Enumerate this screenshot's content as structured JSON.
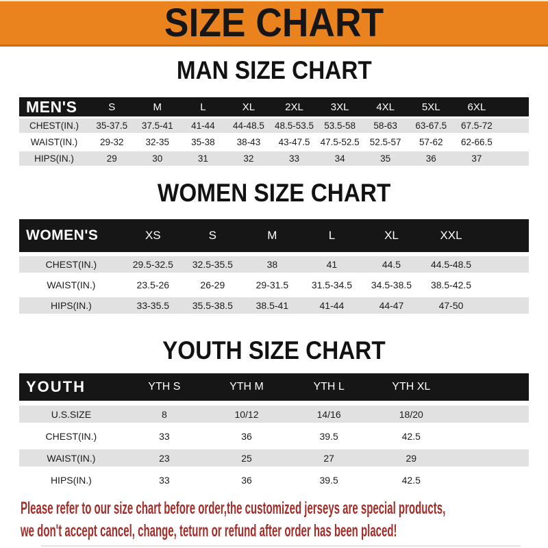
{
  "banner": {
    "title": "SIZE CHART"
  },
  "sections": [
    {
      "heading": "MAN SIZE CHART",
      "corner_label": "MEN'S",
      "columns": [
        "S",
        "M",
        "L",
        "XL",
        "2XL",
        "3XL",
        "4XL",
        "5XL",
        "6XL"
      ],
      "rows": [
        {
          "label": "CHEST(IN.)",
          "values": [
            "35-37.5",
            "37.5-41",
            "41-44",
            "44-48.5",
            "48.5-53.5",
            "53.5-58",
            "58-63",
            "63-67.5",
            "67.5-72"
          ]
        },
        {
          "label": "WAIST(IN.)",
          "values": [
            "29-32",
            "32-35",
            "35-38",
            "38-43",
            "43-47.5",
            "47.5-52.5",
            "52.5-57",
            "57-62",
            "62-66.5"
          ]
        },
        {
          "label": "HIPS(IN.)",
          "values": [
            "29",
            "30",
            "31",
            "32",
            "33",
            "34",
            "35",
            "36",
            "37"
          ]
        }
      ]
    },
    {
      "heading": "WOMEN SIZE CHART",
      "corner_label": "WOMEN'S",
      "columns": [
        "XS",
        "S",
        "M",
        "L",
        "XL",
        "XXL"
      ],
      "rows": [
        {
          "label": "CHEST(IN.)",
          "values": [
            "29.5-32.5",
            "32.5-35.5",
            "38",
            "41",
            "44.5",
            "44.5-48.5"
          ]
        },
        {
          "label": "WAIST(IN.)",
          "values": [
            "23.5-26",
            "26-29",
            "29-31.5",
            "31.5-34.5",
            "34.5-38.5",
            "38.5-42.5"
          ]
        },
        {
          "label": "HIPS(IN.)",
          "values": [
            "33-35.5",
            "35.5-38.5",
            "38.5-41",
            "41-44",
            "44-47",
            "47-50"
          ]
        }
      ]
    },
    {
      "heading": "YOUTH SIZE CHART",
      "corner_label": "YOUTH",
      "columns": [
        "YTH S",
        "YTH M",
        "YTH L",
        "YTH XL"
      ],
      "rows": [
        {
          "label": "U.S.SIZE",
          "values": [
            "8",
            "10/12",
            "14/16",
            "18/20"
          ]
        },
        {
          "label": "CHEST(IN.)",
          "values": [
            "33",
            "36",
            "39.5",
            "42.5"
          ]
        },
        {
          "label": "WAIST(IN.)",
          "values": [
            "23",
            "25",
            "27",
            "29"
          ]
        },
        {
          "label": "HIPS(IN.)",
          "values": [
            "33",
            "36",
            "39.5",
            "42.5"
          ]
        }
      ]
    }
  ],
  "footer": {
    "line1": "Please refer to our size chart before order,the customized jerseys are special products,",
    "line2": "we don't accept cancel, change, teturn or refund after order has been placed!"
  },
  "colors": {
    "banner_orange": "#EA831E",
    "bar_black": "#161616",
    "row_gray": "#E1E1E1",
    "footer_red": "#A22E2A"
  }
}
